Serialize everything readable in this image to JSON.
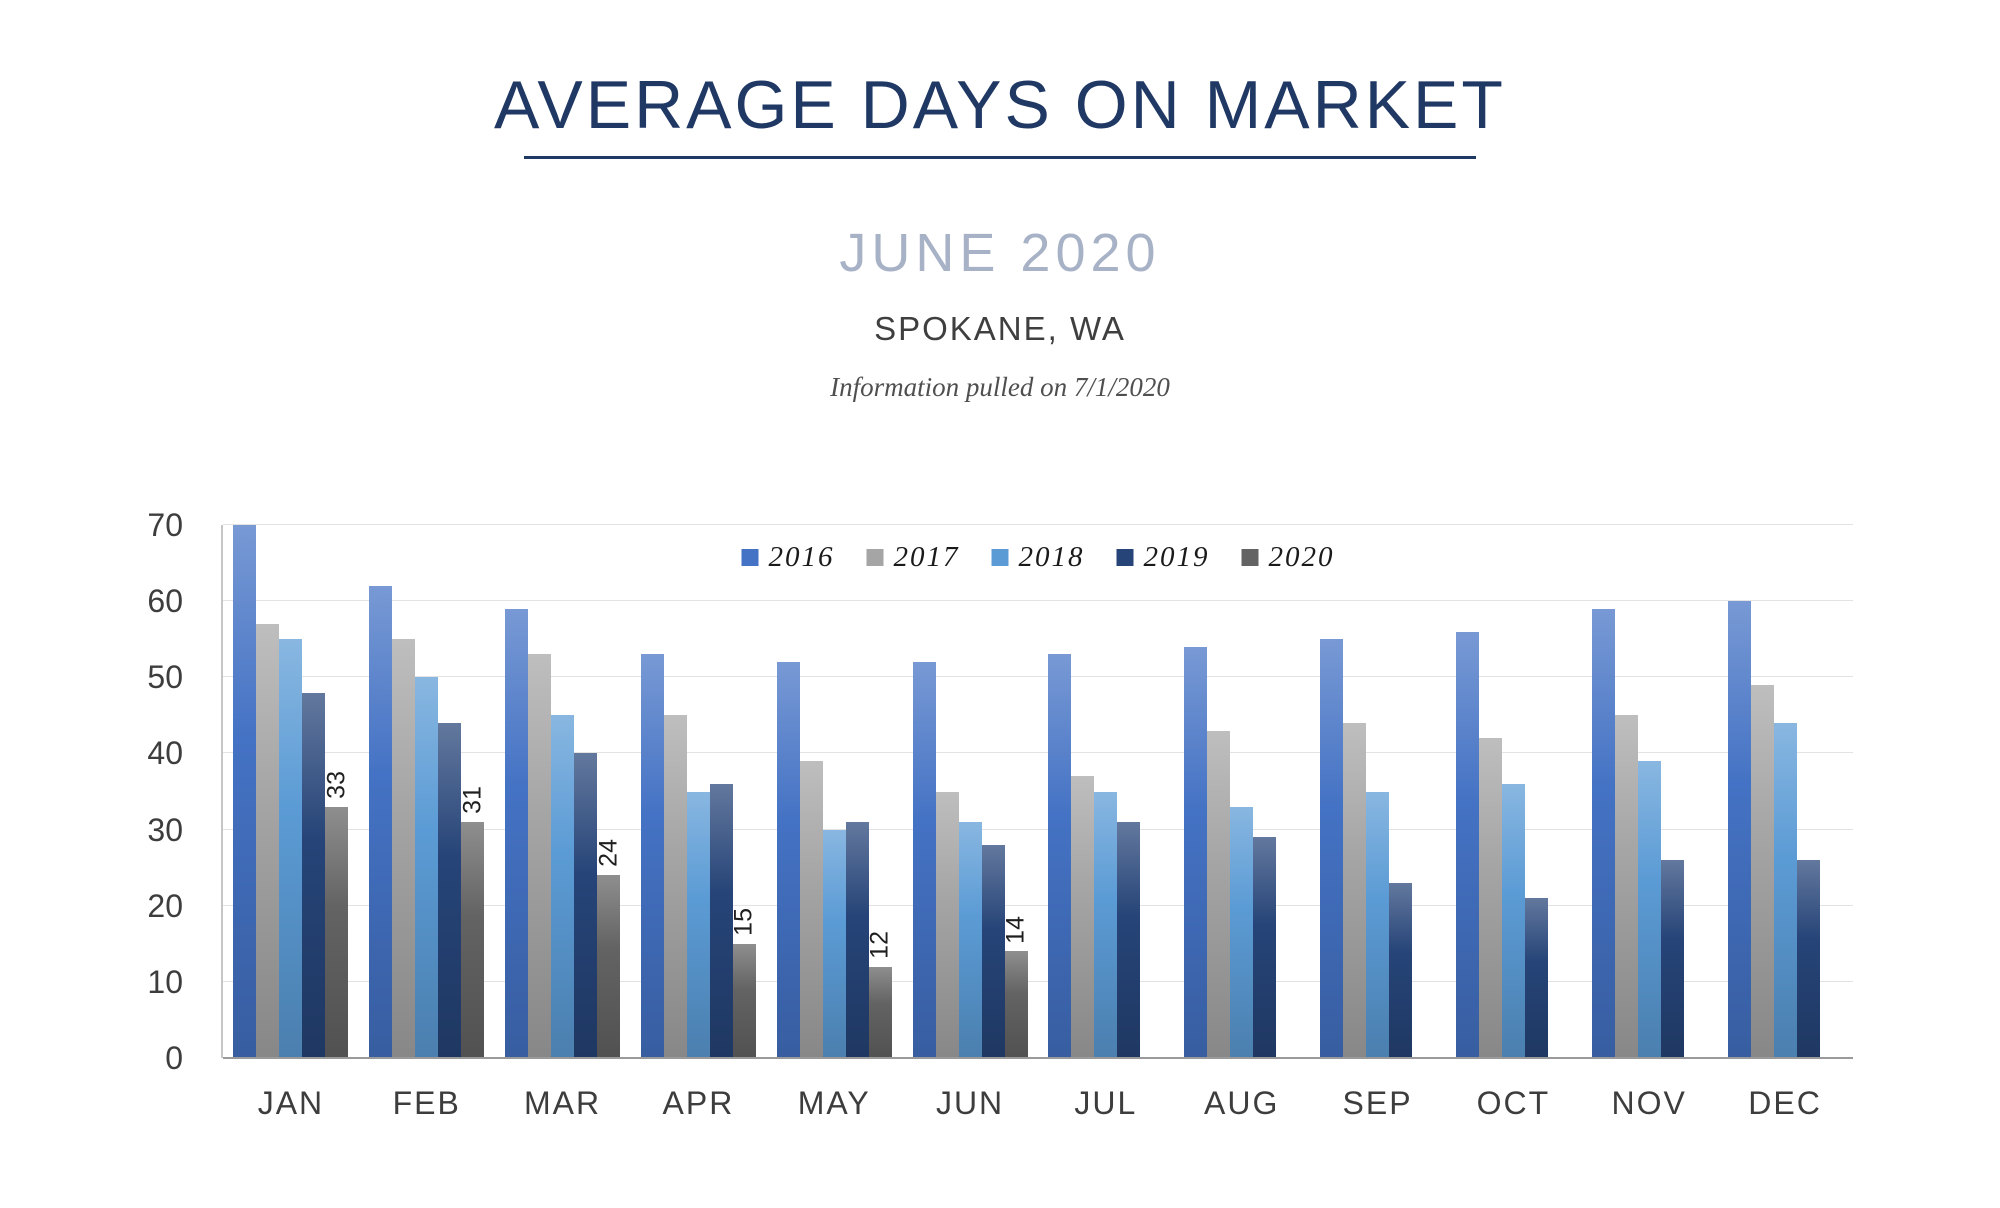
{
  "header": {
    "title": "AVERAGE DAYS ON MARKET",
    "subtitle": "JUNE 2020",
    "location": "SPOKANE, WA",
    "info_note": "Information pulled on 7/1/2020"
  },
  "colors": {
    "title": "#1F3864",
    "underline": "#1F3864",
    "subtitle": "#A8B2C6",
    "location": "#3F3F3F",
    "info": "#4F4F4F",
    "axis_text": "#3D3D3D",
    "grid": "#E3E3E3",
    "axis_line": "#C6C6C6",
    "baseline": "#9A9A9A",
    "value_label": "#1F1F1F",
    "legend_text": "#1A1A1A"
  },
  "chart_data": {
    "type": "bar",
    "title": "Average Days on Market",
    "subtitle": "June 2020, Spokane, WA",
    "xlabel": "",
    "ylabel": "",
    "ylim": [
      0,
      70
    ],
    "y_ticks": [
      0,
      10,
      20,
      30,
      40,
      50,
      60,
      70
    ],
    "grid": true,
    "legend_position": "top-center",
    "categories": [
      "JAN",
      "FEB",
      "MAR",
      "APR",
      "MAY",
      "JUN",
      "JUL",
      "AUG",
      "SEP",
      "OCT",
      "NOV",
      "DEC"
    ],
    "series": [
      {
        "name": "2016",
        "color": "#4472C4",
        "values": [
          70,
          62,
          59,
          53,
          52,
          52,
          53,
          54,
          55,
          56,
          59,
          60
        ]
      },
      {
        "name": "2017",
        "color": "#A5A5A5",
        "values": [
          57,
          55,
          53,
          45,
          39,
          35,
          37,
          43,
          44,
          42,
          45,
          49
        ]
      },
      {
        "name": "2018",
        "color": "#5B9BD5",
        "values": [
          55,
          50,
          45,
          35,
          30,
          31,
          35,
          33,
          35,
          36,
          39,
          44
        ]
      },
      {
        "name": "2019",
        "color": "#264478",
        "values": [
          48,
          44,
          40,
          36,
          31,
          28,
          31,
          29,
          23,
          21,
          26,
          26
        ]
      },
      {
        "name": "2020",
        "color": "#636363",
        "values": [
          33,
          31,
          24,
          15,
          12,
          14,
          null,
          null,
          null,
          null,
          null,
          null
        ],
        "data_labels": true
      }
    ]
  }
}
